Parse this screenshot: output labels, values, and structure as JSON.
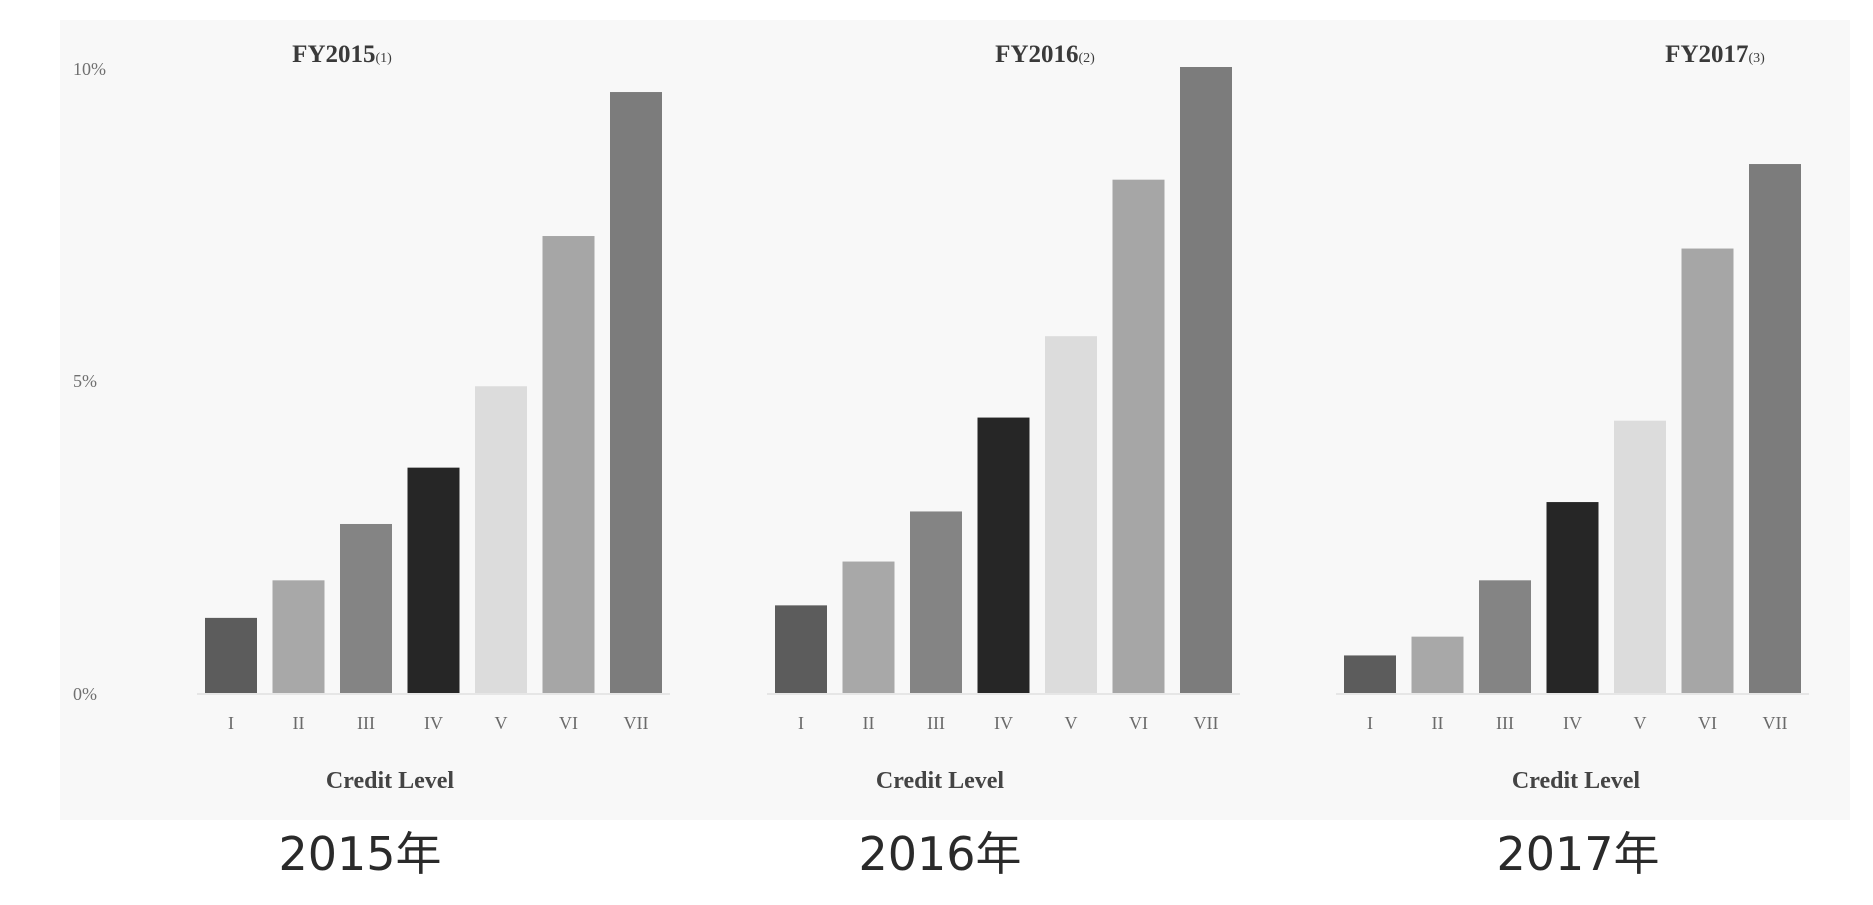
{
  "chart_data": [
    {
      "type": "bar",
      "title": "FY2015",
      "title_note": "(1)",
      "xlabel": "Credit Level",
      "ylabel": "",
      "categories": [
        "I",
        "II",
        "III",
        "IV",
        "V",
        "VI",
        "VII"
      ],
      "values": [
        1.2,
        1.8,
        2.7,
        3.6,
        4.9,
        7.3,
        9.6
      ],
      "colors": [
        "#5c5c5c",
        "#a8a8a8",
        "#848484",
        "#262626",
        "#dcdcdc",
        "#a6a6a6",
        "#7c7c7c"
      ],
      "ylim": [
        0,
        10
      ],
      "yticks": [
        "0%",
        "5%",
        "10%"
      ],
      "caption": "2015年"
    },
    {
      "type": "bar",
      "title": "FY2016",
      "title_note": "(2)",
      "xlabel": "Credit Level",
      "ylabel": "",
      "categories": [
        "I",
        "II",
        "III",
        "IV",
        "V",
        "VI",
        "VII"
      ],
      "values": [
        1.4,
        2.1,
        2.9,
        4.4,
        5.7,
        8.2,
        10.0
      ],
      "colors": [
        "#5c5c5c",
        "#a8a8a8",
        "#848484",
        "#262626",
        "#dcdcdc",
        "#a6a6a6",
        "#7c7c7c"
      ],
      "ylim": [
        0,
        10
      ],
      "caption": "2016年"
    },
    {
      "type": "bar",
      "title": "FY2017",
      "title_note": "(3)",
      "xlabel": "Credit Level",
      "ylabel": "",
      "categories": [
        "I",
        "II",
        "III",
        "IV",
        "V",
        "VI",
        "VII"
      ],
      "values": [
        0.6,
        0.9,
        1.8,
        3.05,
        4.35,
        7.1,
        8.45
      ],
      "colors": [
        "#5c5c5c",
        "#a8a8a8",
        "#848484",
        "#262626",
        "#dcdcdc",
        "#a6a6a6",
        "#7c7c7c"
      ],
      "ylim": [
        0,
        10
      ],
      "caption": "2017年"
    }
  ]
}
